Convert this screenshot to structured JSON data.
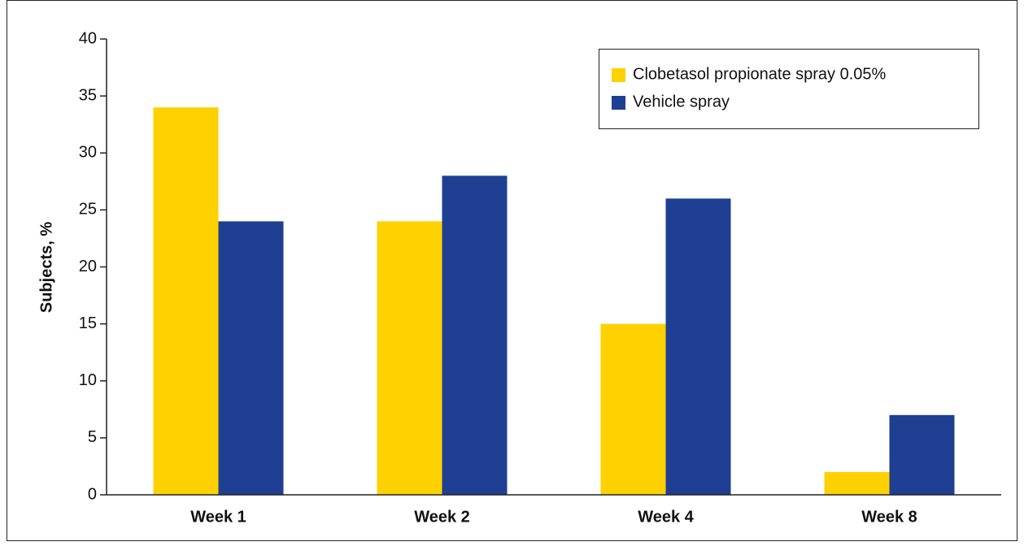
{
  "chart_data": {
    "type": "bar",
    "categories": [
      "Week 1",
      "Week 2",
      "Week 4",
      "Week 8"
    ],
    "series": [
      {
        "name": "Clobetasol propionate spray 0.05%",
        "color": "#ffd100",
        "values": [
          34,
          24,
          15,
          2
        ]
      },
      {
        "name": "Vehicle spray",
        "color": "#1f3f93",
        "values": [
          24,
          28,
          26,
          7
        ]
      }
    ],
    "ylabel": "Subjects, %",
    "ylim": [
      0,
      40
    ],
    "yticks": [
      0,
      5,
      10,
      15,
      20,
      25,
      30,
      35,
      40
    ],
    "grid": false,
    "legend": "top-right"
  }
}
